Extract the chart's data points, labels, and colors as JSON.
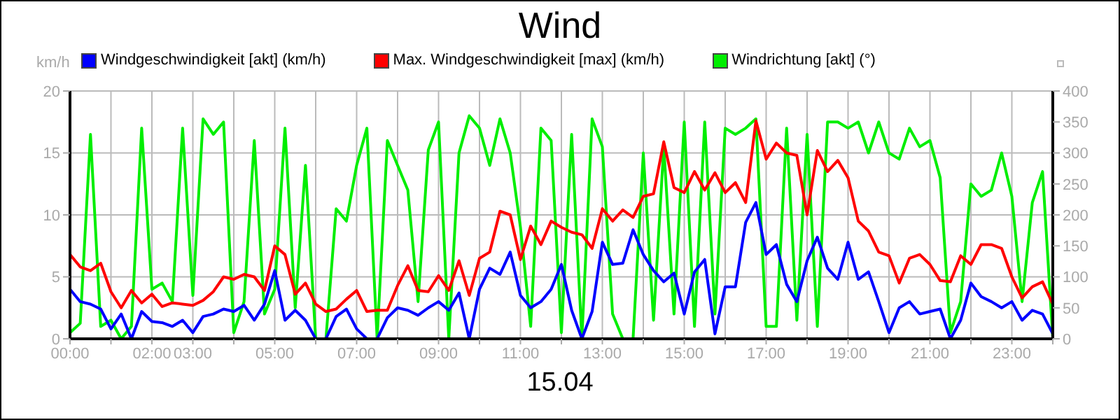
{
  "chart_data": {
    "type": "line",
    "title": "Wind",
    "xlabel": "15.04",
    "ylabel": "km/h",
    "legend": "top",
    "grid": true,
    "marker": "none",
    "line_style": "solid",
    "x": [
      0,
      0.25,
      0.5,
      0.75,
      1,
      1.25,
      1.5,
      1.75,
      2,
      2.25,
      2.5,
      2.75,
      3,
      3.25,
      3.5,
      3.75,
      4,
      4.25,
      4.5,
      4.75,
      5,
      5.25,
      5.5,
      5.75,
      6,
      6.25,
      6.5,
      6.75,
      7,
      7.25,
      7.5,
      7.75,
      8,
      8.25,
      8.5,
      8.75,
      9,
      9.25,
      9.5,
      9.75,
      10,
      10.25,
      10.5,
      10.75,
      11,
      11.25,
      11.5,
      11.75,
      12,
      12.25,
      12.5,
      12.75,
      13,
      13.25,
      13.5,
      13.75,
      14,
      14.25,
      14.5,
      14.75,
      15,
      15.25,
      15.5,
      15.75,
      16,
      16.25,
      16.5,
      16.75,
      17,
      17.25,
      17.5,
      17.75,
      18,
      18.25,
      18.5,
      18.75,
      19,
      19.25,
      19.5,
      19.75,
      20,
      20.25,
      20.5,
      20.75,
      21,
      21.25,
      21.5,
      21.75,
      22,
      22.25,
      22.5,
      22.75,
      23,
      23.25,
      23.5,
      23.75,
      24
    ],
    "series": [
      {
        "name": "Windgeschwindigkeit [akt] (km/h)",
        "color": "#0000ff",
        "values": [
          4.0,
          3.0,
          2.8,
          2.4,
          0.8,
          2.0,
          0,
          2.2,
          1.4,
          1.3,
          1.0,
          1.5,
          0.5,
          1.8,
          2.0,
          2.4,
          2.2,
          2.7,
          1.5,
          2.8,
          5.5,
          1.5,
          2.3,
          1.5,
          0,
          0,
          1.8,
          2.4,
          0.8,
          0,
          0,
          1.7,
          2.5,
          2.3,
          1.9,
          2.5,
          3.0,
          2.3,
          3.7,
          0,
          4.0,
          5.7,
          5.2,
          7.0,
          3.5,
          2.5,
          3.0,
          4.0,
          6.0,
          2.3,
          0,
          2.2,
          7.8,
          6.0,
          6.1,
          8.8,
          6.8,
          5.5,
          4.6,
          5.3,
          2.0,
          5.4,
          6.4,
          0.4,
          4.2,
          4.2,
          9.4,
          11.0,
          6.8,
          7.6,
          4.4,
          3.0,
          6.3,
          8.2,
          5.7,
          4.8,
          7.8,
          4.8,
          5.4,
          3.0,
          0.5,
          2.5,
          3.0,
          2.0,
          2.2,
          2.4,
          0,
          1.5,
          4.5,
          3.4,
          3.0,
          2.5,
          3.0,
          1.5,
          2.3,
          2.0,
          0.4
        ]
      },
      {
        "name": "Max. Windgeschwindigkeit [max] (km/h)",
        "color": "#ff0000",
        "values": [
          6.8,
          5.8,
          5.5,
          6.1,
          3.8,
          2.5,
          3.9,
          2.9,
          3.6,
          2.6,
          2.9,
          2.8,
          2.7,
          3.1,
          3.8,
          5.0,
          4.8,
          5.2,
          5.0,
          3.9,
          7.5,
          6.8,
          3.6,
          4.5,
          2.8,
          2.2,
          2.4,
          3.2,
          3.9,
          2.2,
          2.3,
          2.3,
          4.3,
          5.9,
          3.9,
          3.8,
          5.1,
          3.9,
          6.3,
          3.5,
          6.5,
          7.0,
          10.3,
          10.0,
          6.4,
          9.1,
          7.6,
          9.5,
          9.0,
          8.6,
          8.4,
          7.3,
          10.5,
          9.5,
          10.4,
          9.8,
          11.5,
          11.7,
          15.9,
          12.2,
          11.8,
          13.5,
          12.0,
          13.4,
          11.8,
          12.6,
          11.0,
          17.6,
          14.5,
          15.8,
          15.0,
          14.8,
          10.0,
          15.2,
          13.5,
          14.4,
          13.0,
          9.5,
          8.7,
          7.0,
          6.7,
          4.5,
          6.5,
          6.8,
          6.0,
          4.7,
          4.6,
          6.7,
          6.0,
          7.6,
          7.6,
          7.3,
          5.0,
          3.3,
          4.2,
          4.6,
          2.8
        ]
      },
      {
        "name": "Windrichtung [akt] (°)",
        "color": "#00ee00",
        "axis": "y2",
        "values": [
          10,
          25,
          330,
          20,
          30,
          0,
          20,
          340,
          80,
          90,
          60,
          340,
          70,
          355,
          330,
          350,
          10,
          60,
          320,
          40,
          80,
          340,
          50,
          280,
          0,
          0,
          210,
          190,
          280,
          340,
          0,
          320,
          280,
          240,
          60,
          305,
          350,
          0,
          300,
          360,
          340,
          280,
          355,
          300,
          180,
          20,
          340,
          320,
          10,
          330,
          0,
          355,
          310,
          40,
          0,
          0,
          300,
          30,
          310,
          40,
          350,
          20,
          350,
          40,
          340,
          330,
          340,
          355,
          20,
          20,
          340,
          30,
          330,
          20,
          350,
          350,
          340,
          350,
          300,
          350,
          300,
          290,
          340,
          310,
          320,
          260,
          10,
          60,
          250,
          230,
          240,
          300,
          230,
          60,
          220,
          270,
          0
        ]
      }
    ],
    "xlim": [
      0,
      24
    ],
    "xticks": [
      {
        "value": 0,
        "label": "00:00"
      },
      {
        "value": 1,
        "label": null
      },
      {
        "value": 2,
        "label": "02:00"
      },
      {
        "value": 3,
        "label": "03:00"
      },
      {
        "value": 4,
        "label": null
      },
      {
        "value": 5,
        "label": "05:00"
      },
      {
        "value": 6,
        "label": null
      },
      {
        "value": 7,
        "label": "07:00"
      },
      {
        "value": 8,
        "label": null
      },
      {
        "value": 9,
        "label": "09:00"
      },
      {
        "value": 10,
        "label": null
      },
      {
        "value": 11,
        "label": "11:00"
      },
      {
        "value": 12,
        "label": null
      },
      {
        "value": 13,
        "label": "13:00"
      },
      {
        "value": 14,
        "label": null
      },
      {
        "value": 15,
        "label": "15:00"
      },
      {
        "value": 16,
        "label": null
      },
      {
        "value": 17,
        "label": "17:00"
      },
      {
        "value": 18,
        "label": null
      },
      {
        "value": 19,
        "label": "19:00"
      },
      {
        "value": 20,
        "label": null
      },
      {
        "value": 21,
        "label": "21:00"
      },
      {
        "value": 22,
        "label": null
      },
      {
        "value": 23,
        "label": "23:00"
      },
      {
        "value": 24,
        "label": null
      }
    ],
    "ylim": [
      0,
      20
    ],
    "yticks": [
      0,
      5,
      10,
      15,
      20
    ],
    "y2lim": [
      0,
      400
    ],
    "y2ticks": [
      0,
      50,
      100,
      150,
      200,
      250,
      300,
      350,
      400
    ]
  }
}
